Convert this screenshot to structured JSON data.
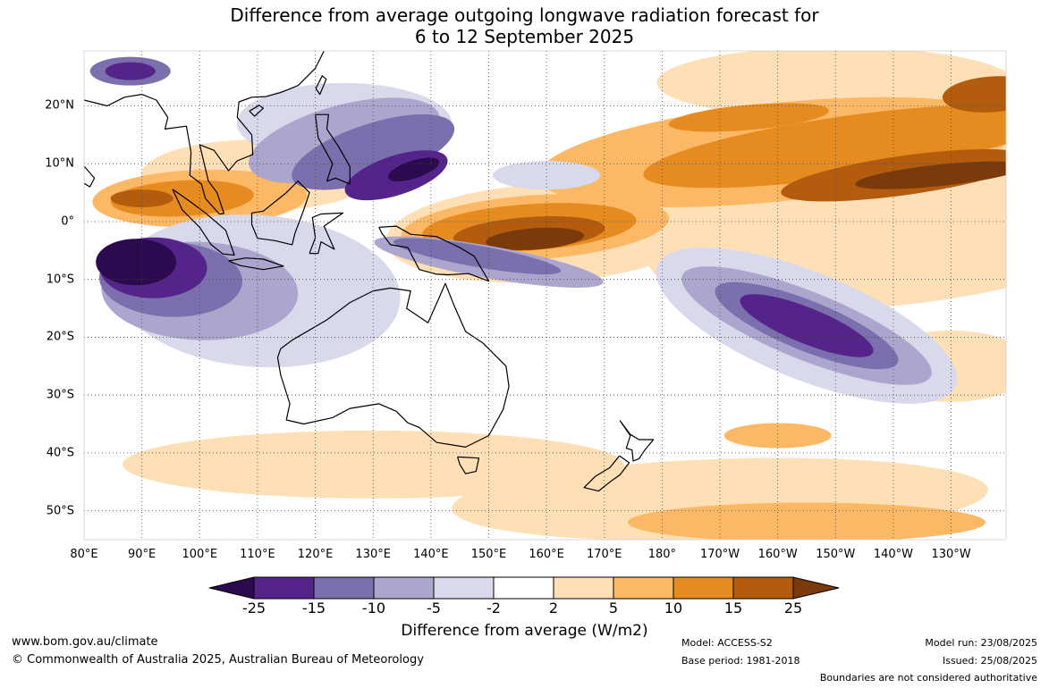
{
  "title": {
    "line1": "Difference from average outgoing longwave radiation forecast for",
    "line2": "6 to 12 September 2025"
  },
  "map": {
    "longitude_labels": [
      "80°E",
      "90°E",
      "100°E",
      "110°E",
      "120°E",
      "130°E",
      "140°E",
      "150°E",
      "160°E",
      "170°E",
      "180°",
      "170°W",
      "160°W",
      "150°W",
      "140°W",
      "130°W"
    ],
    "latitude_labels": [
      "20°N",
      "10°N",
      "0°",
      "10°S",
      "20°S",
      "30°S",
      "40°S",
      "50°S"
    ],
    "extent": {
      "lon_min": 80,
      "lon_max": 239.5,
      "lat_min": -55,
      "lat_max": 29.5
    },
    "contour_levels": [
      -25,
      -15,
      -10,
      -5,
      -2,
      2,
      5,
      10,
      15,
      25
    ],
    "class_colors": [
      "#2b0a4f",
      "#55248a",
      "#7c6fad",
      "#aca6cf",
      "#d9d9ec",
      "#ffffff",
      "#ffdfb6",
      "#fcb865",
      "#e58b1f",
      "#b35c0d",
      "#7a3a09"
    ]
  },
  "colorbar": {
    "labels": [
      "-25",
      "-15",
      "-10",
      "-5",
      "-2",
      "2",
      "5",
      "10",
      "15",
      "25"
    ],
    "title": "Difference from average (W/m2)"
  },
  "footer": {
    "website": "www.bom.gov.au/climate",
    "copyright": "© Commonwealth of Australia 2025, Australian Bureau of Meteorology",
    "model": "Model: ACCESS-S2",
    "base_period": "Base period: 1981-2018",
    "model_run": "Model run: 23/08/2025",
    "issued": "Issued: 25/08/2025",
    "disclaimer": "Boundaries are not considered authoritative"
  }
}
